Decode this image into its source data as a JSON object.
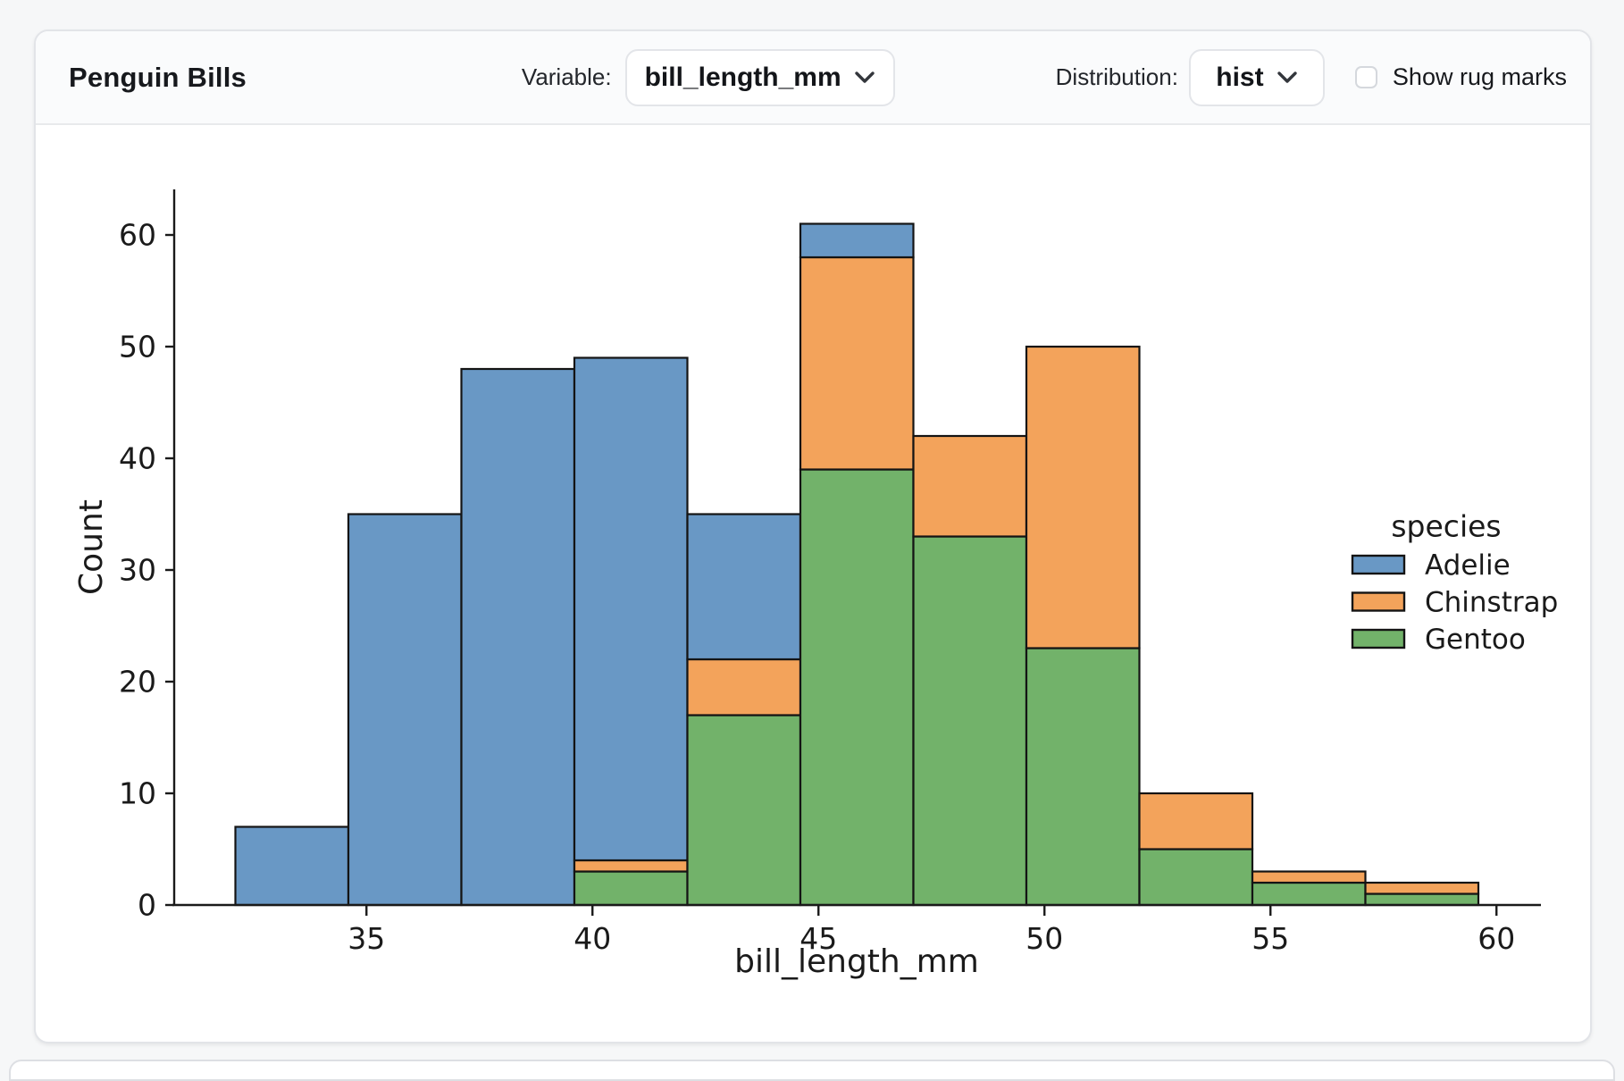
{
  "header": {
    "title": "Penguin Bills",
    "variable_label": "Variable:",
    "variable_value": "bill_length_mm",
    "distribution_label": "Distribution:",
    "distribution_value": "hist",
    "rug_label": "Show rug marks",
    "rug_checked": false
  },
  "chart_data": {
    "type": "bar",
    "subtype": "stacked-histogram",
    "xlabel": "bill_length_mm",
    "ylabel": "Count",
    "bin_edges": [
      32.1,
      34.6,
      37.1,
      39.6,
      42.1,
      44.6,
      47.1,
      49.6,
      52.1,
      54.6,
      57.1,
      59.6
    ],
    "series": [
      {
        "name": "Adelie",
        "color": "#6998C5",
        "values": [
          7,
          35,
          48,
          45,
          13,
          3,
          0,
          0,
          0,
          0,
          0
        ]
      },
      {
        "name": "Chinstrap",
        "color": "#F3A35B",
        "values": [
          0,
          0,
          0,
          1,
          5,
          19,
          9,
          27,
          5,
          1,
          1
        ]
      },
      {
        "name": "Gentoo",
        "color": "#72B26A",
        "values": [
          0,
          0,
          0,
          3,
          17,
          39,
          33,
          23,
          5,
          2,
          1
        ]
      }
    ],
    "stack_order_bottom_to_top": [
      "Gentoo",
      "Chinstrap",
      "Adelie"
    ],
    "bin_totals": [
      7,
      35,
      48,
      49,
      35,
      61,
      42,
      50,
      10,
      3,
      2
    ],
    "xticks": [
      35,
      40,
      45,
      50,
      55,
      60
    ],
    "yticks": [
      0,
      10,
      20,
      30,
      40,
      50,
      60
    ],
    "xlim": [
      30.725,
      60.975
    ],
    "ylim": [
      0,
      64.05
    ],
    "grid": false,
    "legend": {
      "title": "species",
      "entries": [
        "Adelie",
        "Chinstrap",
        "Gentoo"
      ],
      "position": "right"
    },
    "edge_color": "#141414",
    "text_color": "#1a1a1a"
  }
}
